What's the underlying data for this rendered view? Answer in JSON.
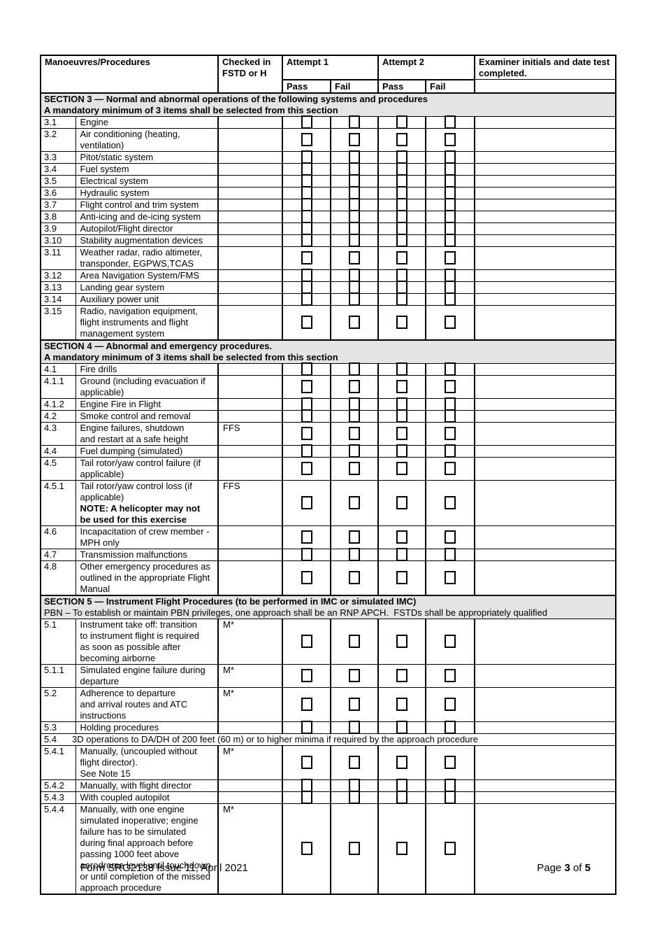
{
  "table": {
    "header": {
      "manoeuvres": "Manoeuvres/Procedures",
      "checked": "Checked in FSTD or H",
      "attempt1": "Attempt 1",
      "attempt2": "Attempt 2",
      "examiner": "Examiner initials and date test completed.",
      "pass1": "Pass",
      "fail1": "Fail",
      "pass2": "Pass",
      "fail2": "Fail"
    },
    "rows": [
      {
        "type": "section",
        "lines": [
          {
            "text": "SECTION 3 — Normal and abnormal operations of the following systems and procedures",
            "bold": true
          },
          {
            "text": "A mandatory minimum of 3 items shall be selected from this section",
            "bold": true
          }
        ]
      },
      {
        "type": "item",
        "num": "3.1",
        "desc": "Engine",
        "fstd": ""
      },
      {
        "type": "item",
        "num": "3.2",
        "desc": "Air conditioning (heating,\nventilation)",
        "fstd": ""
      },
      {
        "type": "item",
        "num": "3.3",
        "desc": "Pitot/static system",
        "fstd": ""
      },
      {
        "type": "item",
        "num": "3.4",
        "desc": "Fuel system",
        "fstd": ""
      },
      {
        "type": "item",
        "num": "3.5",
        "desc": "Electrical system",
        "fstd": ""
      },
      {
        "type": "item",
        "num": "3.6",
        "desc": "Hydraulic system",
        "fstd": ""
      },
      {
        "type": "item",
        "num": "3.7",
        "desc": "Flight control and trim system",
        "fstd": ""
      },
      {
        "type": "item",
        "num": "3.8",
        "desc": "Anti-icing and de-icing system",
        "fstd": ""
      },
      {
        "type": "item",
        "num": "3.9",
        "desc": "Autopilot/Flight director",
        "fstd": ""
      },
      {
        "type": "item",
        "num": "3.10",
        "desc": "Stability augmentation devices",
        "fstd": ""
      },
      {
        "type": "item",
        "num": "3.11",
        "desc": "Weather radar, radio altimeter,\ntransponder, EGPWS,TCAS",
        "fstd": ""
      },
      {
        "type": "item",
        "num": "3.12",
        "desc": "Area Navigation System/FMS",
        "fstd": ""
      },
      {
        "type": "item",
        "num": "3.13",
        "desc": "Landing gear system",
        "fstd": ""
      },
      {
        "type": "item",
        "num": "3.14",
        "desc": "Auxiliary power unit",
        "fstd": ""
      },
      {
        "type": "item",
        "num": "3.15",
        "desc": "Radio, navigation equipment,\nflight instruments and flight\nmanagement system",
        "fstd": ""
      },
      {
        "type": "section",
        "lines": [
          {
            "text": "SECTION 4 — Abnormal and emergency procedures.",
            "bold": true
          },
          {
            "text": "A mandatory minimum of 3 items shall be selected from this section",
            "bold": true
          }
        ]
      },
      {
        "type": "item",
        "num": "4.1",
        "desc": "Fire drills",
        "fstd": ""
      },
      {
        "type": "item",
        "num": "4.1.1",
        "desc": "Ground (including evacuation if\napplicable)",
        "fstd": ""
      },
      {
        "type": "item",
        "num": "4.1.2",
        "desc": "Engine Fire in Flight",
        "fstd": ""
      },
      {
        "type": "item",
        "num": "4.2",
        "desc": "Smoke control and removal",
        "fstd": ""
      },
      {
        "type": "item",
        "num": "4.3",
        "desc": "Engine failures, shutdown\nand restart at a safe height",
        "fstd": "FFS"
      },
      {
        "type": "item",
        "num": "4.4",
        "desc": "Fuel dumping (simulated)",
        "fstd": ""
      },
      {
        "type": "item",
        "num": "4.5",
        "desc": "Tail rotor/yaw control failure (if\napplicable)",
        "fstd": ""
      },
      {
        "type": "item",
        "num": "4.5.1",
        "desc": "Tail rotor/yaw control loss (if\napplicable)",
        "note": "NOTE: A helicopter may not\nbe used for this exercise",
        "fstd": "FFS"
      },
      {
        "type": "item",
        "num": "4.6",
        "desc": "Incapacitation of crew member -\nMPH only",
        "fstd": ""
      },
      {
        "type": "item",
        "num": "4.7",
        "desc": "Transmission malfunctions",
        "fstd": ""
      },
      {
        "type": "item",
        "num": "4.8",
        "desc": "Other emergency procedures as\noutlined in the appropriate Flight\nManual",
        "fstd": ""
      },
      {
        "type": "section",
        "lines": [
          {
            "text": "SECTION 5 — Instrument Flight Procedures (to be performed in IMC or simulated IMC)",
            "bold": true
          },
          {
            "text": "PBN – To establish or maintain PBN privileges, one approach shall be an RNP APCH.  FSTDs shall be appropriately qualified",
            "bold": false
          }
        ]
      },
      {
        "type": "item",
        "num": "5.1",
        "desc": "Instrument take off: transition\nto instrument flight is required\nas soon as possible after\nbecoming airborne",
        "fstd": "M*"
      },
      {
        "type": "item",
        "num": "5.1.1",
        "desc": "Simulated engine failure during\ndeparture",
        "fstd": "M*"
      },
      {
        "type": "item",
        "num": "5.2",
        "desc": "Adherence to departure\nand arrival routes and ATC\ninstructions",
        "fstd": "M*"
      },
      {
        "type": "item",
        "num": "5.3",
        "desc": "Holding procedures",
        "fstd": ""
      },
      {
        "type": "span",
        "num": "5.4",
        "desc": "3D operations to DA/DH of 200 feet (60 m) or to higher minima if required by the approach procedure"
      },
      {
        "type": "item",
        "num": "5.4.1",
        "desc": "Manually, (uncoupled without\nflight director).\nSee Note 15",
        "fstd": "M*"
      },
      {
        "type": "item",
        "num": "5.4.2",
        "desc": "Manually, with flight director",
        "fstd": ""
      },
      {
        "type": "item",
        "num": "5.4.3",
        "desc": "With coupled autopilot",
        "fstd": ""
      },
      {
        "type": "item",
        "num": "5.4.4",
        "desc": "Manually, with one engine\nsimulated inoperative; engine\nfailure has to be simulated\nduring final approach before\npassing 1000 feet above\naerodrome level until touchdown\nor until completion of the missed\napproach procedure",
        "fstd": "M*"
      }
    ]
  },
  "footer": {
    "form_info": "Form SRG2138 Issue 11, April 2021",
    "page_label": "Page",
    "page_number": "3",
    "of_label": "of",
    "page_total": "5"
  }
}
